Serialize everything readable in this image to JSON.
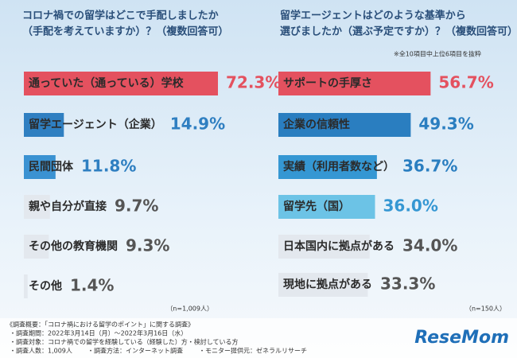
{
  "chart_data": [
    {
      "type": "bar",
      "orientation": "horizontal",
      "title": "コロナ禍での留学はどこで手配しましたか",
      "subtitle": "（手配を考えていますか）？（複数回答可）",
      "categories": [
        "通っていた（通っている）学校",
        "留学エージェント（企業）",
        "民間団体",
        "親や自分が直接",
        "その他の教育機関",
        "その他"
      ],
      "values": [
        72.3,
        14.9,
        11.8,
        9.7,
        9.3,
        1.4
      ],
      "value_labels": [
        "72.3%",
        "14.9%",
        "11.8%",
        "9.7%",
        "9.3%",
        "1.4%"
      ],
      "colors": [
        "#e4515f",
        "#2f7fc1",
        "#3a92d2",
        "#e3e8ee",
        "#e3e8ee",
        "#e3e8ee"
      ],
      "value_colors": [
        "#e4515f",
        "#2f7fc1",
        "#2f7fc1",
        "#555555",
        "#555555",
        "#555555"
      ],
      "xlim": [
        0,
        80
      ],
      "note": "（n=1,009人）"
    },
    {
      "type": "bar",
      "orientation": "horizontal",
      "title": "留学エージェントはどのような基準から",
      "subtitle": "選びましたか（選ぶ予定ですか）？（複数回答可）",
      "annotation": "※全10項目中上位6項目を抜粋",
      "categories": [
        "サポートの手厚さ",
        "企業の信頼性",
        "実績（利用者数など）",
        "留学先（国）",
        "日本国内に拠点がある",
        "現地に拠点がある"
      ],
      "values": [
        56.7,
        49.3,
        36.7,
        36.0,
        34.0,
        33.3
      ],
      "value_labels": [
        "56.7%",
        "49.3%",
        "36.7%",
        "36.0%",
        "34.0%",
        "33.3%"
      ],
      "colors": [
        "#e4515f",
        "#2a7ec0",
        "#3597d3",
        "#6cc3e6",
        "#e3e8ee",
        "#e3e8ee"
      ],
      "value_colors": [
        "#e4515f",
        "#2a7ec0",
        "#2a7ec0",
        "#3597d3",
        "#555555",
        "#555555"
      ],
      "xlim": [
        0,
        80
      ],
      "note": "（n=150人）"
    }
  ],
  "footer": [
    "《調査概要：「コロナ禍における留学のポイント」に関する調査》",
    "・調査期間：2022年3月14日（月）～2022年3月16日（水）",
    "・調査対象：コロナ禍での留学を経験している（経験した）方・検討している方",
    "・調査人数：1,009人",
    "・調査方法：インターネット調査",
    "・モニター提供元：ゼネラルリサーチ"
  ],
  "logo": "ReseMom"
}
